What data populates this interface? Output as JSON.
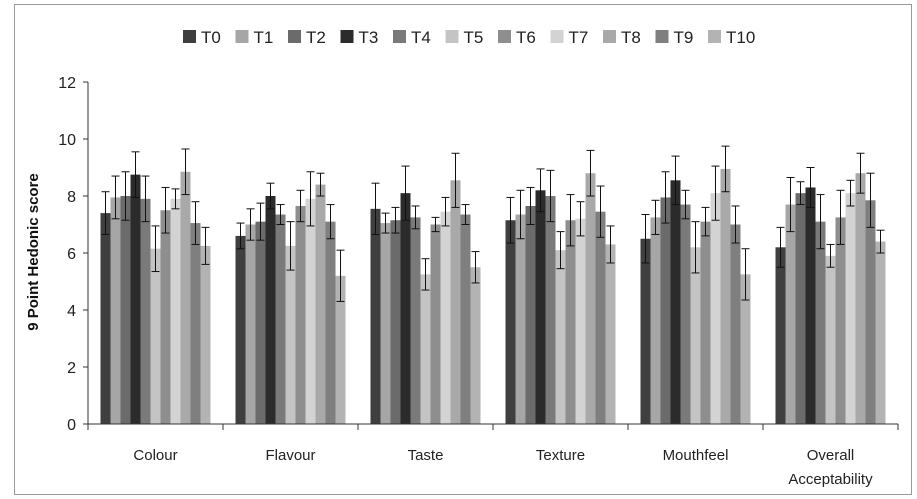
{
  "chart_data": {
    "type": "bar",
    "title": "",
    "xlabel": "",
    "ylabel": "9 Point Hedonic score",
    "ylim": [
      0,
      12
    ],
    "yticks": [
      0,
      2,
      4,
      6,
      8,
      10,
      12
    ],
    "grid": false,
    "legend_position": "top",
    "error_bars": true,
    "categories": [
      "Colour",
      "Flavour",
      "Taste",
      "Texture",
      "Mouthfeel",
      "Overall Acceptability"
    ],
    "series": [
      {
        "name": "T0",
        "color": "#3f3f3f",
        "values": [
          7.4,
          6.6,
          7.55,
          7.15,
          6.5,
          6.2
        ],
        "errors": [
          0.75,
          0.45,
          0.9,
          0.8,
          0.85,
          0.7
        ]
      },
      {
        "name": "T1",
        "color": "#a6a6a6",
        "values": [
          7.95,
          7.0,
          7.05,
          7.35,
          7.25,
          7.7
        ],
        "errors": [
          0.75,
          0.55,
          0.35,
          0.85,
          0.6,
          0.95
        ]
      },
      {
        "name": "T2",
        "color": "#6b6b6b",
        "values": [
          8.0,
          7.1,
          7.15,
          7.65,
          7.95,
          8.1
        ],
        "errors": [
          0.85,
          0.65,
          0.45,
          0.65,
          0.9,
          0.4
        ]
      },
      {
        "name": "T3",
        "color": "#2b2b2b",
        "values": [
          8.75,
          8.0,
          8.1,
          8.2,
          8.55,
          8.3
        ],
        "errors": [
          0.8,
          0.45,
          0.95,
          0.75,
          0.85,
          0.7
        ]
      },
      {
        "name": "T4",
        "color": "#7a7a7a",
        "values": [
          7.9,
          7.35,
          7.25,
          8.0,
          7.7,
          7.1
        ],
        "errors": [
          0.8,
          0.35,
          0.4,
          0.9,
          0.5,
          0.95
        ]
      },
      {
        "name": "T5",
        "color": "#c4c4c4",
        "values": [
          6.15,
          6.25,
          5.25,
          6.1,
          6.2,
          5.9
        ],
        "errors": [
          0.8,
          0.85,
          0.55,
          0.65,
          0.9,
          0.4
        ]
      },
      {
        "name": "T6",
        "color": "#8e8e8e",
        "values": [
          7.5,
          7.65,
          7.0,
          7.15,
          7.1,
          7.25
        ],
        "errors": [
          0.8,
          0.55,
          0.25,
          0.9,
          0.5,
          0.95
        ]
      },
      {
        "name": "T7",
        "color": "#d3d3d3",
        "values": [
          7.9,
          7.9,
          7.45,
          7.2,
          8.1,
          8.1
        ],
        "errors": [
          0.35,
          0.95,
          0.5,
          0.6,
          0.95,
          0.45
        ]
      },
      {
        "name": "T8",
        "color": "#a9a9a9",
        "values": [
          8.85,
          8.4,
          8.55,
          8.8,
          8.95,
          8.8
        ],
        "errors": [
          0.8,
          0.4,
          0.95,
          0.8,
          0.8,
          0.7
        ]
      },
      {
        "name": "T9",
        "color": "#7f7f7f",
        "values": [
          7.05,
          7.1,
          7.35,
          7.45,
          7.0,
          7.85
        ],
        "errors": [
          0.75,
          0.6,
          0.35,
          0.9,
          0.65,
          0.95
        ]
      },
      {
        "name": "T10",
        "color": "#b3b3b3",
        "values": [
          6.25,
          5.2,
          5.5,
          6.3,
          5.25,
          6.4
        ],
        "errors": [
          0.65,
          0.9,
          0.55,
          0.65,
          0.9,
          0.4
        ]
      }
    ]
  }
}
